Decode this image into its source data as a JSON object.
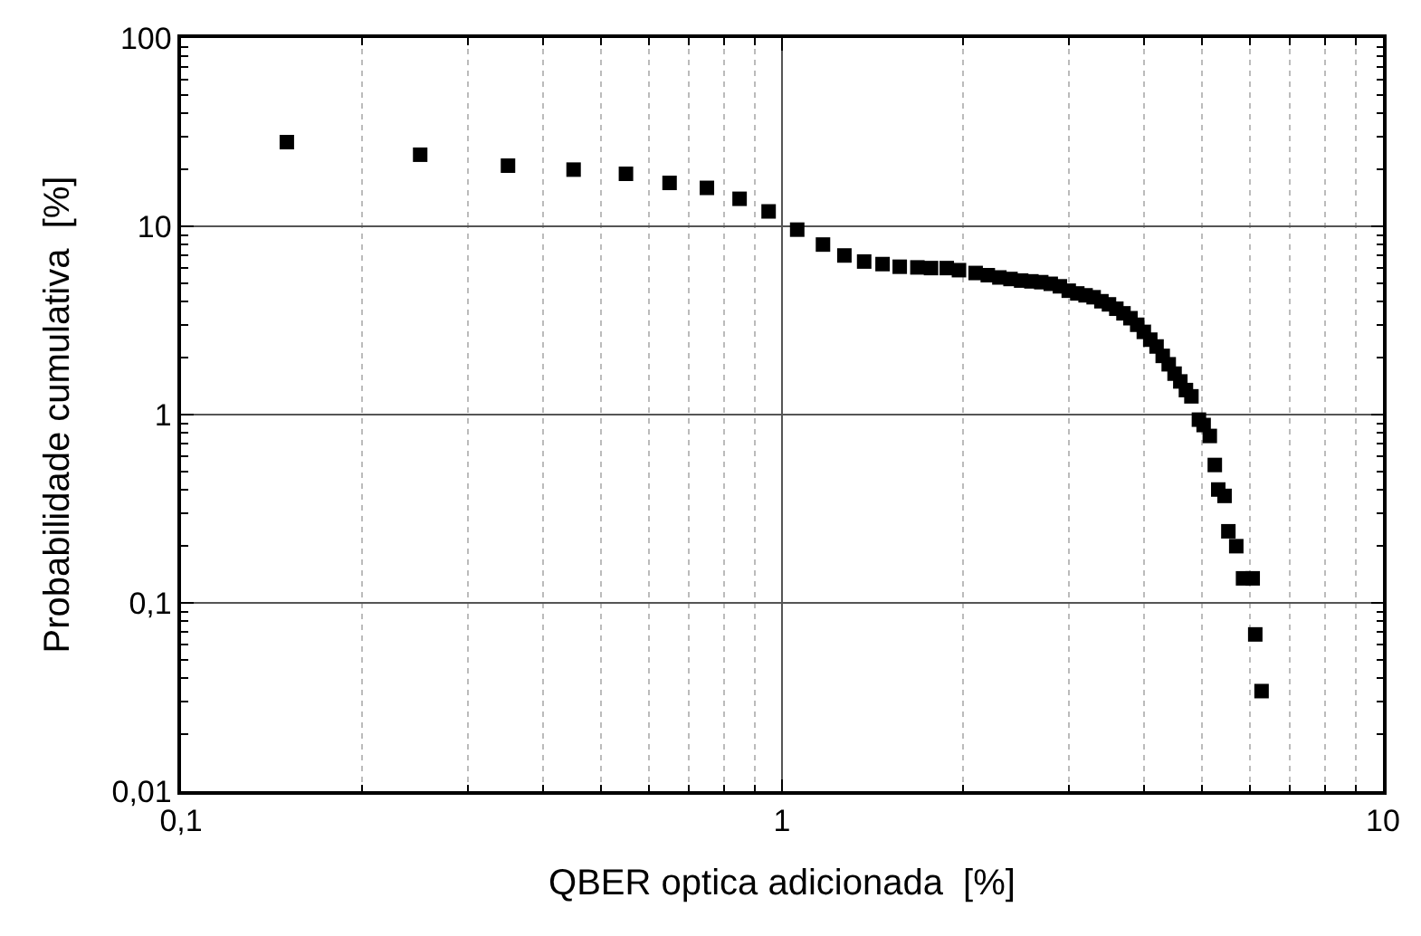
{
  "chart_data": {
    "type": "scatter",
    "xlabel": "QBER optica adicionada  [%]",
    "ylabel": "Probabilidade cumulativa  [%]",
    "log": "xy",
    "grid": true,
    "marker": "square",
    "legend": false,
    "xlim": [
      0.1,
      10
    ],
    "ylim": [
      0.01,
      100
    ],
    "xticks": [
      {
        "value": 0.1,
        "label": "0,1"
      },
      1,
      10
    ],
    "yticks": [
      {
        "value": 0.01,
        "label": "0,01"
      },
      {
        "value": 0.1,
        "label": "0,1"
      },
      1,
      10,
      100
    ],
    "series": [
      {
        "color": "#000000",
        "x": [
          0.15,
          0.25,
          0.35,
          0.45,
          0.55,
          0.65,
          0.75,
          0.85,
          0.95,
          1.06,
          1.17,
          1.27,
          1.37,
          1.47,
          1.57,
          1.68,
          1.77,
          1.88,
          1.97,
          2.1,
          2.2,
          2.3,
          2.4,
          2.5,
          2.6,
          2.7,
          2.8,
          2.9,
          3.0,
          3.1,
          3.2,
          3.3,
          3.4,
          3.5,
          3.6,
          3.7,
          3.8,
          3.9,
          4.0,
          4.1,
          4.2,
          4.3,
          4.4,
          4.5,
          4.6,
          4.7,
          4.8,
          4.94,
          5.03,
          5.15,
          5.25,
          5.32,
          5.45,
          5.53,
          5.7,
          5.85,
          6.07,
          6.13,
          6.28
        ],
        "values": [
          28,
          24,
          21,
          20,
          19,
          17,
          16,
          14,
          12,
          9.6,
          8,
          7,
          6.5,
          6.3,
          6.1,
          6.05,
          6,
          6,
          5.85,
          5.65,
          5.5,
          5.35,
          5.25,
          5.15,
          5.1,
          5.05,
          4.95,
          4.8,
          4.55,
          4.4,
          4.3,
          4.2,
          4,
          3.85,
          3.65,
          3.45,
          3.25,
          3,
          2.75,
          2.5,
          2.3,
          2.05,
          1.85,
          1.65,
          1.5,
          1.35,
          1.25,
          0.94,
          0.88,
          0.77,
          0.54,
          0.4,
          0.37,
          0.24,
          0.2,
          0.135,
          0.135,
          0.068,
          0.034
        ]
      }
    ]
  }
}
